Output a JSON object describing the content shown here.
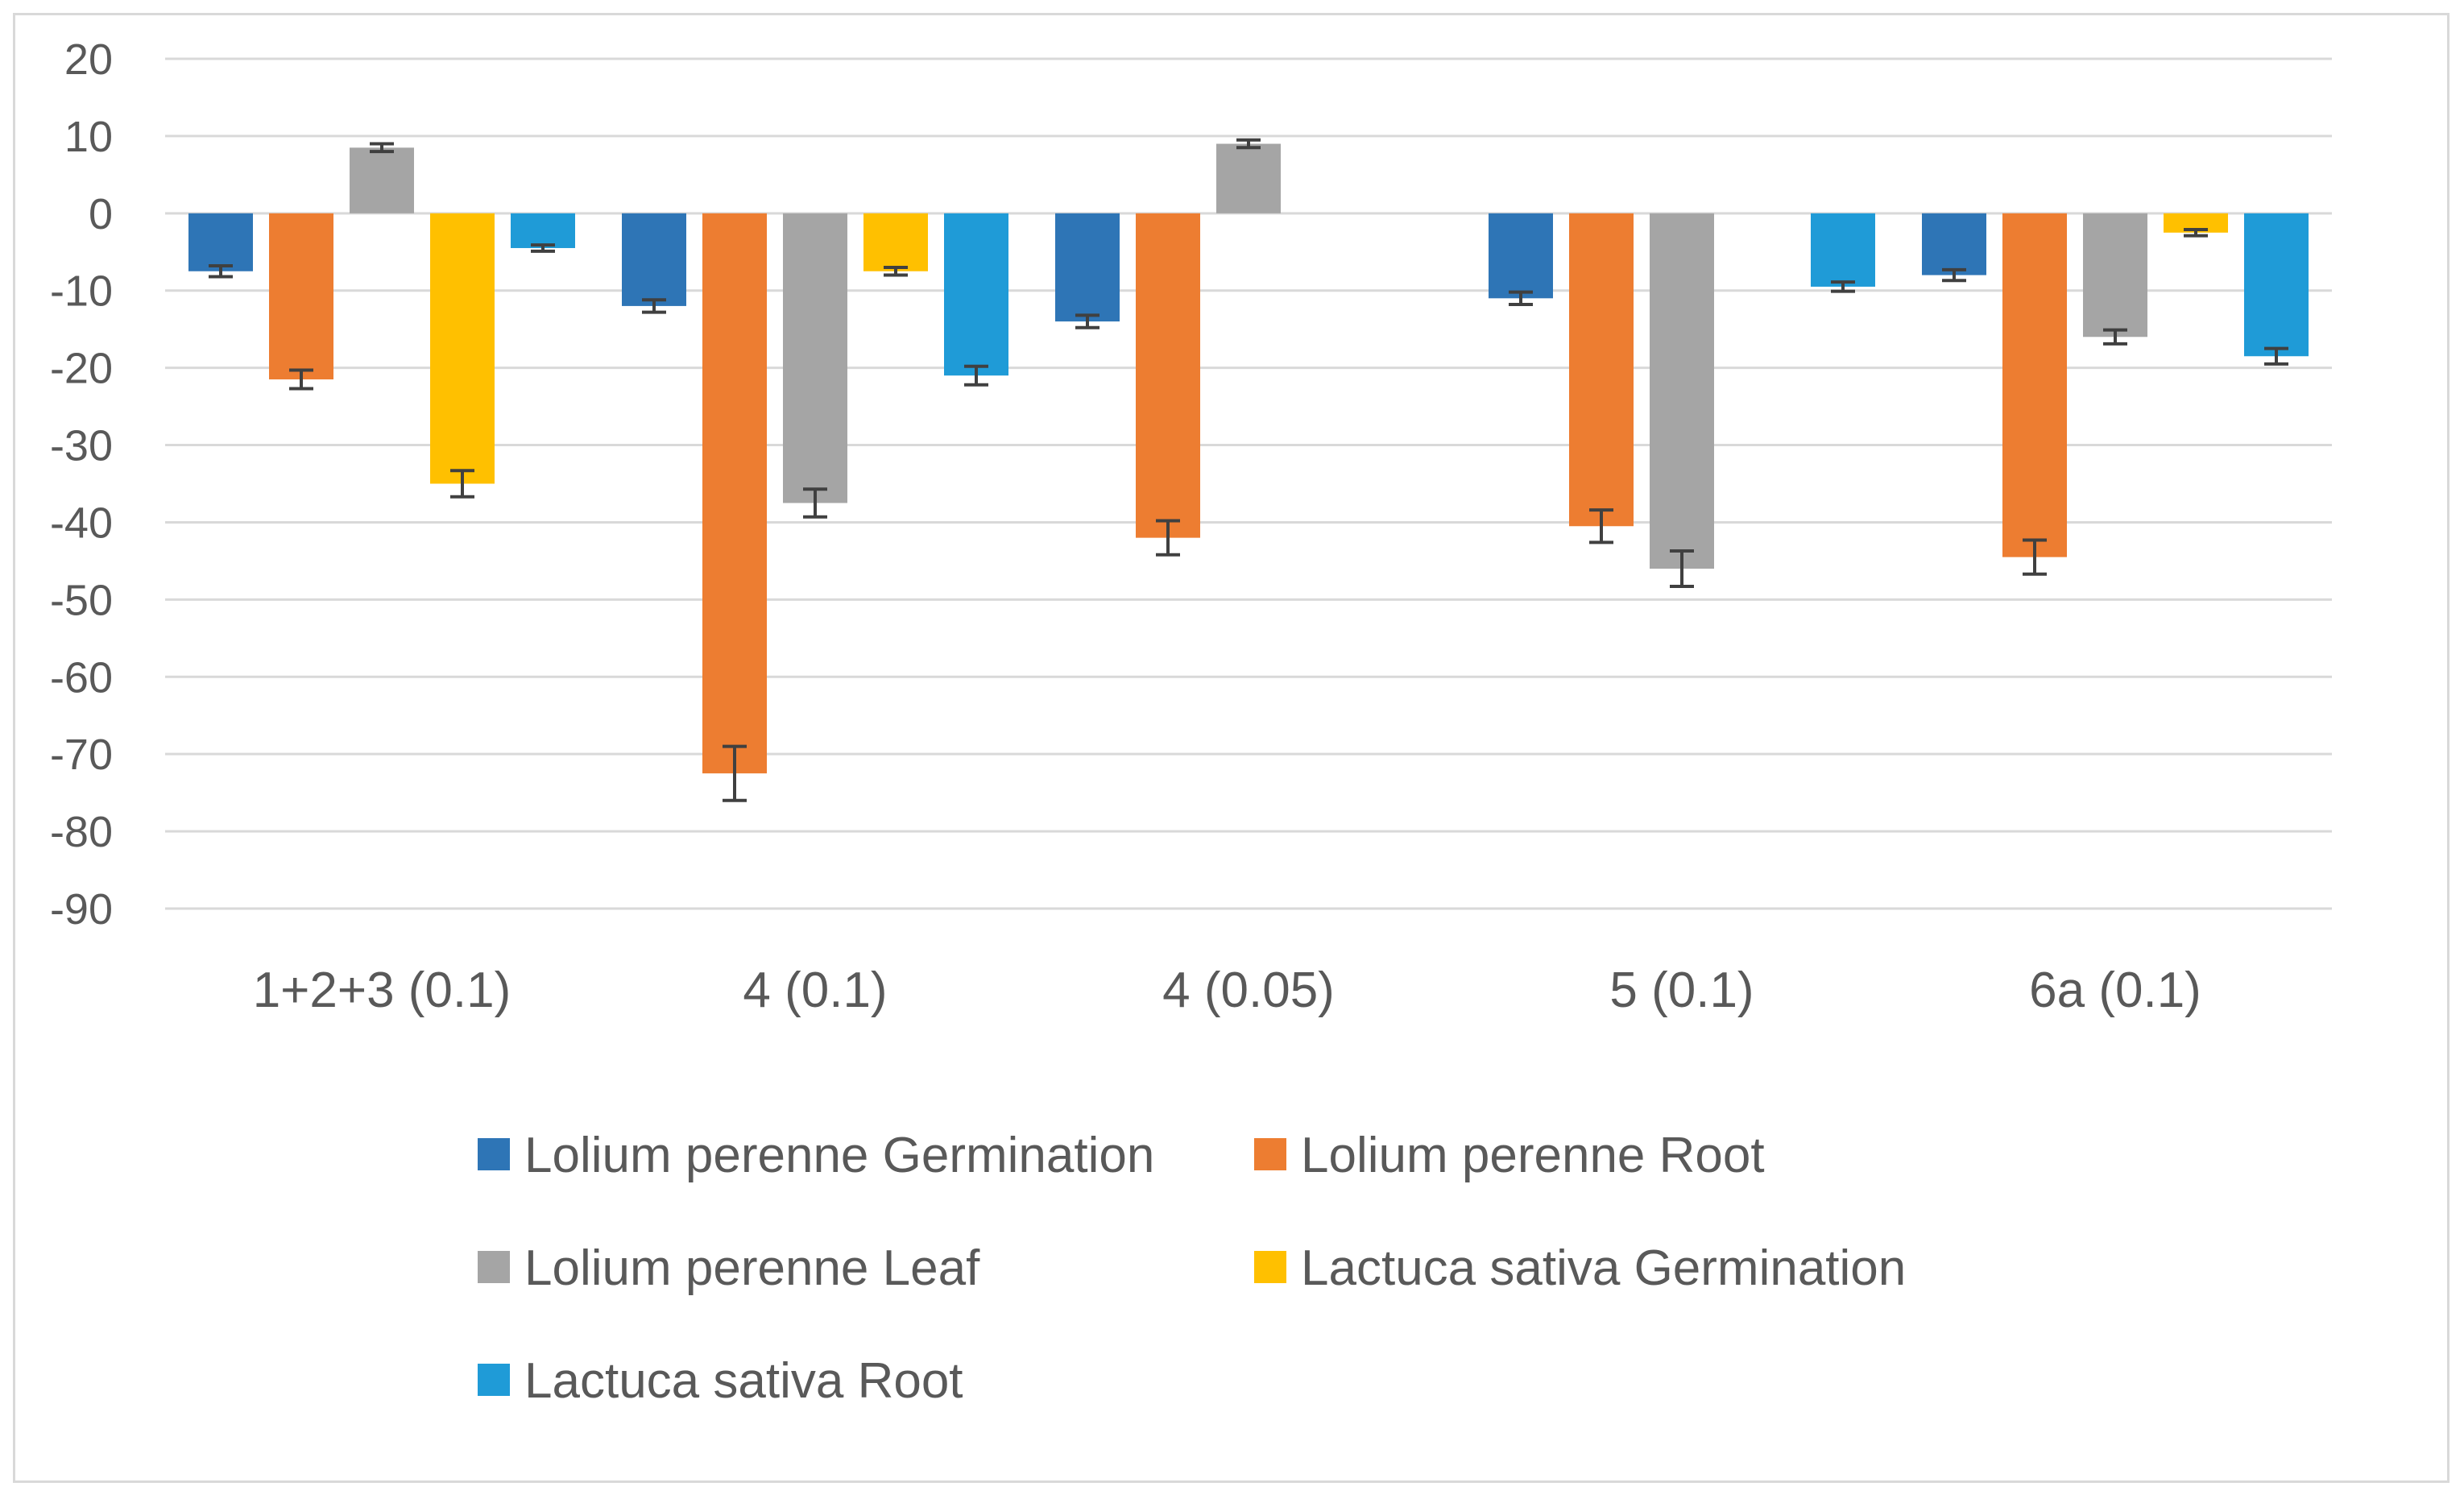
{
  "chart_data": {
    "type": "bar",
    "title": "",
    "xlabel": "",
    "ylabel": "",
    "ylim": [
      -90,
      20
    ],
    "yticks": [
      20,
      10,
      0,
      -10,
      -20,
      -30,
      -40,
      -50,
      -60,
      -70,
      -80,
      -90
    ],
    "grid": true,
    "legend_position": "bottom",
    "categories": [
      "1+2+3 (0.1)",
      "4 (0.1)",
      "4 (0.05)",
      "5 (0.1)",
      "6a (0.1)"
    ],
    "series": [
      {
        "name": "Lolium perenne Germination",
        "color": "#2e75b6",
        "values": [
          -7.5,
          -12,
          -14,
          -11,
          -8
        ],
        "errors": [
          0.7,
          0.8,
          0.8,
          0.8,
          0.7
        ]
      },
      {
        "name": "Lolium perenne Root",
        "color": "#ed7d31",
        "values": [
          -21.5,
          -72.5,
          -42,
          -40.5,
          -44.5
        ],
        "errors": [
          1.2,
          3.5,
          2.2,
          2.1,
          2.2
        ]
      },
      {
        "name": "Lolium perenne Leaf",
        "color": "#a5a5a5",
        "values": [
          8.5,
          -37.5,
          9,
          -46,
          -16
        ],
        "errors": [
          0.5,
          1.8,
          0.5,
          2.3,
          0.9
        ]
      },
      {
        "name": "Lactuca sativa Germination",
        "color": "#ffc000",
        "values": [
          -35,
          -7.5,
          0,
          0,
          -2.5
        ],
        "errors": [
          1.7,
          0.5,
          0,
          0,
          0.4
        ]
      },
      {
        "name": "Lactuca sativa Root",
        "color": "#1f9bd7",
        "values": [
          -4.5,
          -21,
          0,
          -9.5,
          -18.5
        ],
        "errors": [
          0.4,
          1.2,
          0,
          0.6,
          1.0
        ]
      }
    ]
  }
}
